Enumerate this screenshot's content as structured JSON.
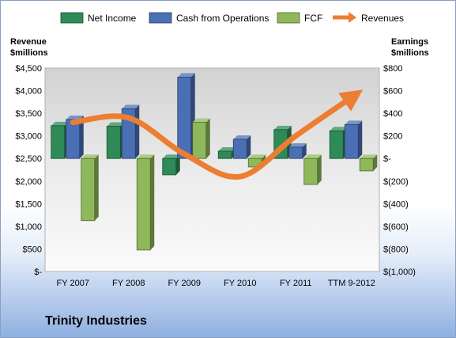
{
  "chart_data": {
    "type": "bar",
    "company": "Trinity Industries",
    "y_left_title": [
      "Revenue",
      "$millions"
    ],
    "y_right_title": [
      "Earnings",
      "$millions"
    ],
    "categories": [
      "FY 2007",
      "FY 2008",
      "FY 2009",
      "FY 2010",
      "FY 2011",
      "TTM 9-2012"
    ],
    "left_ticks": [
      "$-",
      "$500",
      "$1,000",
      "$1,500",
      "$2,000",
      "$2,500",
      "$3,000",
      "$3,500",
      "$4,000",
      "$4,500"
    ],
    "right_ticks": [
      "$(1,000)",
      "$(800)",
      "$(600)",
      "$(400)",
      "$(200)",
      "$-",
      "$200",
      "$400",
      "$600",
      "$800"
    ],
    "ylim_left": [
      0,
      4500
    ],
    "ylim_right": [
      -1000,
      800
    ],
    "series": [
      {
        "name": "Net Income",
        "axis": "right",
        "type": "bar",
        "color": "#2e8b57",
        "values": [
          290,
          285,
          -145,
          65,
          255,
          245
        ]
      },
      {
        "name": "Cash from Operations",
        "axis": "right",
        "type": "bar",
        "color": "#4a6fb5",
        "values": [
          345,
          440,
          720,
          170,
          100,
          300
        ]
      },
      {
        "name": "FCF",
        "axis": "right",
        "type": "bar",
        "color": "#8fb85a",
        "values": [
          -550,
          -810,
          320,
          -75,
          -230,
          -110
        ]
      },
      {
        "name": "Revenues",
        "axis": "left",
        "type": "line",
        "color": "#ed7d31",
        "values": [
          3300,
          3400,
          2600,
          2100,
          3000,
          3850
        ]
      }
    ],
    "grid": false,
    "legend": "top"
  }
}
